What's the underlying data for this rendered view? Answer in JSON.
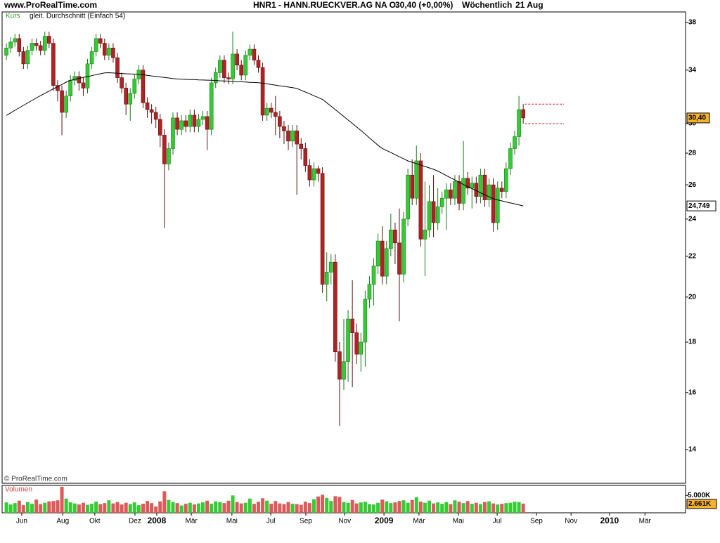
{
  "chart_data": {
    "type": "candlestick",
    "site": "www.ProRealTime.com",
    "title": "HNR1 - HANN.RUECKVER.AG NA O.",
    "quote": "30,40 (+0,00%)",
    "interval": "Wöchentlich",
    "date": "21 Aug",
    "price_legend": "Kurs",
    "copyright": "© ProRealTime.com",
    "volume_title": "Volumen",
    "log_scale": true,
    "grid": false,
    "up_color": "#33cc33",
    "down_color": "#b22222",
    "volume_up_color": "#33cc33",
    "volume_down_color": "#dd5a5a",
    "xlim": [
      0,
      160
    ],
    "xticks": [
      {
        "value": 4.6,
        "label": "Jun"
      },
      {
        "value": 14.2,
        "label": "Aug"
      },
      {
        "value": 21.7,
        "label": "Okt"
      },
      {
        "value": 31.1,
        "label": "Dez"
      },
      {
        "value": 36.2,
        "label": "2008"
      },
      {
        "value": 44.3,
        "label": "Mär"
      },
      {
        "value": 53.8,
        "label": "Mai"
      },
      {
        "value": 62.9,
        "label": "Jul"
      },
      {
        "value": 71.1,
        "label": "Sep"
      },
      {
        "value": 80.2,
        "label": "Nov"
      },
      {
        "value": 89.4,
        "label": "2009"
      },
      {
        "value": 97.6,
        "label": "Mär"
      },
      {
        "value": 106.8,
        "label": "Mai"
      },
      {
        "value": 115.9,
        "label": "Jul"
      },
      {
        "value": 125.1,
        "label": "Sep"
      },
      {
        "value": 133.2,
        "label": "Nov"
      },
      {
        "value": 142.2,
        "label": "2010"
      },
      {
        "value": 150.5,
        "label": "Mär"
      }
    ],
    "ylim": [
      12.94,
      38.95
    ],
    "yticks": [
      14,
      16,
      18,
      20,
      22,
      24,
      26,
      28,
      30,
      34,
      38
    ],
    "vlim": [
      0,
      7900
    ],
    "vticks": [
      {
        "value": 5000,
        "label": "5.000K"
      }
    ],
    "x": [
      1,
      2,
      3,
      4,
      5,
      6,
      7,
      8,
      9,
      10,
      11,
      12,
      13,
      14,
      15,
      16,
      17,
      18,
      19,
      20,
      21,
      22,
      23,
      24,
      25,
      26,
      27,
      28,
      29,
      30,
      31,
      32,
      33,
      34,
      35,
      36,
      37,
      38,
      39,
      40,
      41,
      42,
      43,
      44,
      45,
      46,
      47,
      48,
      49,
      50,
      51,
      52,
      53,
      54,
      55,
      56,
      57,
      58,
      59,
      60,
      61,
      62,
      63,
      64,
      65,
      66,
      67,
      68,
      69,
      70,
      71,
      72,
      73,
      74,
      75,
      76,
      77,
      78,
      79,
      80,
      81,
      82,
      83,
      84,
      85,
      86,
      87,
      88,
      89,
      90,
      91,
      92,
      93,
      94,
      95,
      96,
      97,
      98,
      99,
      100,
      101,
      102,
      103,
      104,
      105,
      106,
      107,
      108,
      109,
      110,
      111,
      112,
      113,
      114,
      115,
      116,
      117,
      118,
      119,
      120,
      121,
      122
    ],
    "open": [
      35.2,
      35.8,
      36.3,
      36.6,
      35.5,
      34.5,
      35.6,
      36.2,
      36.0,
      35.6,
      36.8,
      36.2,
      32.8,
      32.4,
      30.8,
      32.0,
      33.2,
      33.5,
      33.0,
      32.6,
      34.5,
      35.5,
      36.6,
      36.2,
      35.2,
      35.8,
      35.0,
      33.4,
      32.6,
      31.4,
      32.2,
      33.3,
      34.0,
      31.5,
      31.0,
      30.8,
      30.3,
      29.2,
      27.3,
      28.3,
      30.4,
      29.6,
      30.2,
      29.8,
      30.6,
      29.8,
      30.3,
      30.5,
      29.6,
      33.0,
      33.8,
      34.8,
      33.4,
      33.3,
      35.3,
      34.4,
      33.6,
      35.2,
      35.7,
      34.8,
      34.2,
      30.6,
      31.1,
      30.8,
      30.5,
      29.8,
      29.5,
      28.8,
      29.5,
      28.6,
      28.3,
      27.2,
      26.3,
      27.0,
      26.7,
      20.6,
      21.2,
      21.7,
      17.6,
      16.5,
      17.2,
      19.0,
      18.4,
      17.5,
      18.0,
      19.9,
      20.6,
      21.5,
      22.8,
      21.0,
      22.4,
      23.4,
      22.7,
      21.1,
      24.0,
      26.6,
      25.2,
      27.5,
      22.9,
      23.4,
      25.0,
      23.8,
      24.7,
      25.2,
      25.7,
      25.2,
      26.2,
      24.9,
      26.4,
      25.8,
      26.1,
      25.3,
      26.6,
      25.1,
      26.0,
      23.8,
      25.8,
      25.6,
      27.0,
      28.3,
      29.1,
      31.0
    ],
    "high": [
      36.2,
      36.7,
      37.0,
      37.0,
      35.9,
      36.0,
      36.6,
      36.6,
      36.4,
      37.2,
      37.2,
      36.6,
      33.2,
      32.8,
      32.4,
      33.6,
      33.9,
      33.9,
      33.4,
      34.9,
      35.9,
      37.0,
      37.0,
      36.6,
      36.2,
      36.2,
      35.4,
      33.8,
      33.0,
      32.6,
      33.7,
      34.4,
      34.4,
      31.9,
      31.4,
      31.2,
      30.7,
      29.6,
      28.7,
      30.8,
      30.8,
      30.6,
      30.6,
      31.0,
      31.0,
      30.7,
      30.9,
      30.9,
      33.4,
      34.2,
      35.2,
      35.2,
      33.8,
      37.2,
      35.7,
      34.8,
      35.6,
      36.1,
      36.1,
      35.2,
      34.6,
      31.5,
      31.5,
      32.0,
      30.9,
      30.2,
      29.9,
      29.9,
      29.9,
      29.0,
      28.7,
      27.6,
      27.4,
      27.2,
      27.1,
      22.2,
      22.1,
      22.1,
      18.0,
      19.0,
      19.4,
      20.8,
      18.8,
      18.4,
      20.3,
      21.0,
      21.9,
      23.2,
      23.6,
      22.8,
      24.3,
      23.8,
      24.6,
      24.4,
      27.0,
      27.6,
      28.5,
      28.0,
      26.2,
      26.0,
      26.6,
      25.8,
      25.6,
      26.1,
      26.1,
      26.6,
      26.6,
      28.8,
      26.8,
      26.5,
      26.5,
      27.0,
      27.0,
      26.4,
      26.4,
      26.2,
      26.2,
      27.4,
      28.7,
      29.5,
      32.0,
      31.4
    ],
    "low": [
      34.8,
      35.4,
      35.9,
      35.1,
      34.1,
      34.1,
      35.2,
      35.6,
      35.2,
      35.2,
      35.8,
      32.4,
      31.6,
      29.2,
      30.4,
      31.6,
      32.8,
      32.4,
      32.0,
      32.2,
      34.1,
      35.1,
      35.8,
      34.8,
      34.8,
      34.6,
      33.0,
      32.2,
      30.6,
      30.2,
      31.8,
      32.9,
      31.1,
      30.4,
      30.0,
      29.7,
      28.4,
      23.5,
      26.9,
      27.9,
      29.2,
      29.2,
      29.4,
      29.4,
      29.4,
      29.4,
      29.9,
      28.2,
      29.2,
      32.6,
      33.4,
      33.0,
      32.9,
      32.9,
      34.0,
      33.2,
      33.2,
      34.8,
      34.4,
      33.8,
      30.2,
      30.2,
      30.4,
      29.2,
      29.0,
      28.6,
      28.2,
      28.4,
      25.4,
      27.6,
      26.8,
      25.9,
      25.9,
      26.2,
      20.2,
      19.8,
      20.6,
      17.2,
      14.8,
      16.1,
      16.4,
      16.2,
      17.1,
      16.8,
      17.0,
      19.5,
      19.6,
      21.1,
      20.6,
      20.6,
      22.0,
      21.6,
      18.9,
      20.7,
      23.6,
      24.8,
      24.8,
      22.5,
      21.0,
      23.0,
      23.0,
      23.4,
      24.3,
      23.4,
      24.8,
      24.8,
      24.5,
      24.5,
      25.4,
      24.6,
      24.9,
      24.9,
      24.7,
      24.7,
      23.3,
      23.4,
      25.2,
      25.2,
      26.6,
      27.9,
      28.5,
      30.0
    ],
    "close": [
      35.8,
      36.3,
      36.6,
      35.5,
      34.5,
      35.6,
      36.2,
      36.0,
      35.6,
      36.8,
      36.2,
      32.8,
      32.4,
      30.8,
      32.0,
      33.2,
      33.5,
      33.0,
      32.6,
      34.5,
      35.5,
      36.6,
      36.2,
      35.2,
      35.8,
      35.0,
      33.4,
      32.6,
      31.4,
      32.2,
      33.3,
      34.0,
      31.5,
      31.0,
      30.8,
      30.3,
      29.2,
      27.3,
      28.3,
      30.4,
      29.6,
      30.2,
      29.8,
      30.6,
      29.8,
      30.3,
      30.5,
      29.6,
      33.0,
      33.8,
      34.8,
      33.4,
      33.3,
      35.3,
      34.4,
      33.6,
      35.2,
      35.7,
      34.8,
      34.2,
      30.6,
      31.1,
      30.8,
      30.5,
      29.8,
      29.5,
      28.8,
      29.5,
      28.6,
      28.3,
      27.2,
      26.3,
      27.0,
      26.7,
      20.6,
      21.2,
      21.7,
      17.6,
      16.5,
      17.2,
      19.0,
      18.4,
      17.5,
      18.0,
      19.9,
      20.6,
      21.5,
      22.8,
      21.0,
      22.4,
      23.4,
      22.7,
      21.1,
      24.0,
      26.6,
      25.2,
      27.5,
      22.9,
      23.4,
      25.0,
      23.8,
      24.7,
      25.2,
      25.7,
      25.2,
      26.2,
      24.9,
      26.4,
      25.8,
      26.1,
      25.3,
      26.6,
      25.1,
      26.0,
      23.8,
      25.8,
      25.6,
      27.0,
      28.3,
      29.1,
      31.0,
      30.4
    ],
    "last_close_label": "30,40",
    "volume": [
      3000,
      2400,
      2800,
      3500,
      2200,
      3100,
      2600,
      3800,
      2500,
      2900,
      3300,
      3400,
      3600,
      7500,
      4100,
      3000,
      2700,
      2400,
      2900,
      2300,
      2600,
      3200,
      2500,
      2800,
      3600,
      2700,
      3100,
      2400,
      2900,
      2500,
      3000,
      2200,
      2600,
      3400,
      2800,
      1800,
      3300,
      6200,
      3700,
      3100,
      2800,
      2100,
      2600,
      2900,
      2400,
      2700,
      3000,
      3500,
      2600,
      3300,
      3100,
      2800,
      3500,
      5000,
      3100,
      2700,
      2900,
      4100,
      2600,
      3200,
      4200,
      3500,
      2600,
      3400,
      2700,
      2500,
      3100,
      2600,
      2500,
      2300,
      3200,
      2800,
      3900,
      4700,
      5200,
      4300,
      3400,
      4800,
      4600,
      3100,
      2900,
      3700,
      2700,
      3000,
      3200,
      2500,
      2400,
      2900,
      3800,
      3300,
      2800,
      3000,
      3400,
      3600,
      2900,
      3700,
      4500,
      3200,
      2900,
      3500,
      2700,
      3000,
      2600,
      3100,
      2500,
      3600,
      3200,
      2800,
      3400,
      2600,
      2900,
      2500,
      3100,
      3300,
      2700,
      2400,
      2600,
      2800,
      2900,
      3200,
      3100,
      2661
    ],
    "last_volume_label": "2.661K",
    "overlays": [
      {
        "name": "gleit. Durchschnitt (Einfach 54)",
        "color": "#000000",
        "last_label": "24,749",
        "values": [
          30.58,
          30.76,
          30.95,
          31.13,
          31.31,
          31.49,
          31.67,
          31.85,
          32.03,
          32.2,
          32.37,
          32.54,
          32.71,
          32.88,
          33.05,
          33.2,
          33.27,
          33.35,
          33.42,
          33.49,
          33.56,
          33.64,
          33.71,
          33.78,
          33.79,
          33.77,
          33.75,
          33.73,
          33.71,
          33.7,
          33.68,
          33.66,
          33.63,
          33.59,
          33.54,
          33.5,
          33.46,
          33.42,
          33.38,
          33.33,
          33.3,
          33.28,
          33.27,
          33.26,
          33.25,
          33.23,
          33.22,
          33.21,
          33.2,
          33.18,
          33.16,
          33.15,
          33.13,
          33.11,
          33.09,
          33.08,
          33.06,
          33.04,
          33.03,
          33.01,
          32.97,
          32.92,
          32.87,
          32.82,
          32.77,
          32.73,
          32.68,
          32.63,
          32.57,
          32.43,
          32.3,
          32.16,
          32.02,
          31.89,
          31.75,
          31.5,
          31.25,
          31.0,
          30.75,
          30.5,
          30.25,
          30.02,
          29.77,
          29.52,
          29.27,
          29.02,
          28.77,
          28.52,
          28.31,
          28.17,
          28.04,
          27.9,
          27.76,
          27.63,
          27.5,
          27.41,
          27.32,
          27.23,
          27.14,
          27.05,
          26.96,
          26.85,
          26.71,
          26.57,
          26.43,
          26.3,
          26.16,
          26.02,
          25.89,
          25.77,
          25.65,
          25.52,
          25.4,
          25.28,
          25.17,
          25.1,
          25.04,
          24.98,
          24.92,
          24.87,
          24.81,
          24.749
        ]
      }
    ]
  }
}
